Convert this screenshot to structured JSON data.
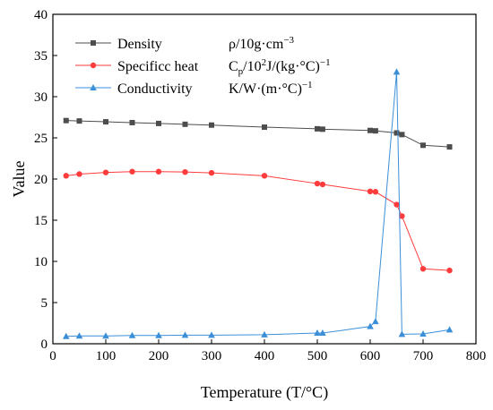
{
  "chart_data": {
    "type": "line",
    "title": "",
    "xlabel": "Temperature (T/°C)",
    "ylabel": "Value",
    "xlim": [
      0,
      800
    ],
    "ylim": [
      0,
      40
    ],
    "xticks": [
      0,
      100,
      200,
      300,
      400,
      500,
      600,
      700,
      800
    ],
    "yticks": [
      0,
      5,
      10,
      15,
      20,
      25,
      30,
      35,
      40
    ],
    "grid": false,
    "legend": "top-left",
    "series": [
      {
        "name": "Density",
        "unit": {
          "pre": "ρ/10g·cm",
          "sup": "−3",
          "post": ""
        },
        "color": "#4d4d4d",
        "marker": "square",
        "x": [
          25,
          50,
          100,
          150,
          200,
          250,
          300,
          400,
          500,
          510,
          600,
          610,
          650,
          660,
          700,
          750
        ],
        "y": [
          27.1,
          27.05,
          26.95,
          26.85,
          26.75,
          26.65,
          26.55,
          26.3,
          26.1,
          26.05,
          25.9,
          25.85,
          25.6,
          25.4,
          24.1,
          23.9
        ]
      },
      {
        "name": "Specificc heat",
        "unit": {
          "pre": "C",
          "sub": "p",
          "mid": "/10",
          "sup": "2",
          "post": "J/(kg·°C)",
          "sup2": "−1"
        },
        "color": "#ff3b3b",
        "marker": "circle",
        "x": [
          25,
          50,
          100,
          150,
          200,
          250,
          300,
          400,
          500,
          510,
          600,
          610,
          650,
          660,
          700,
          750
        ],
        "y": [
          20.4,
          20.6,
          20.8,
          20.9,
          20.9,
          20.85,
          20.75,
          20.4,
          19.45,
          19.35,
          18.5,
          18.45,
          16.9,
          15.5,
          9.1,
          8.9
        ]
      },
      {
        "name": "Conductivity",
        "unit": {
          "pre": "K/W·(m·°C)",
          "sup": "−1",
          "post": ""
        },
        "color": "#3b8fd9",
        "marker": "triangle",
        "x": [
          25,
          50,
          100,
          150,
          200,
          250,
          300,
          400,
          500,
          510,
          600,
          610,
          650,
          660,
          700,
          750
        ],
        "y": [
          0.9,
          0.95,
          0.95,
          1.0,
          1.0,
          1.05,
          1.05,
          1.1,
          1.3,
          1.3,
          2.1,
          2.7,
          33.0,
          1.15,
          1.2,
          1.7
        ]
      }
    ]
  }
}
